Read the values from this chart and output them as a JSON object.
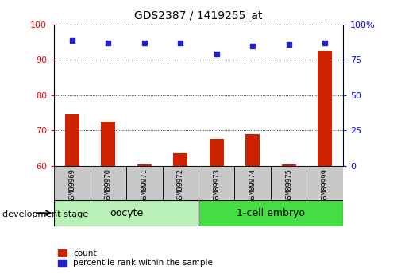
{
  "title": "GDS2387 / 1419255_at",
  "samples": [
    "GSM89969",
    "GSM89970",
    "GSM89971",
    "GSM89972",
    "GSM89973",
    "GSM89974",
    "GSM89975",
    "GSM89999"
  ],
  "count_values": [
    74.5,
    72.5,
    60.5,
    63.5,
    67.5,
    69.0,
    60.5,
    92.5
  ],
  "percentile_values": [
    89,
    87,
    87,
    87,
    79,
    85,
    86,
    87
  ],
  "ylim_left": [
    60,
    100
  ],
  "ylim_right": [
    0,
    100
  ],
  "yticks_left": [
    60,
    70,
    80,
    90,
    100
  ],
  "yticks_right": [
    0,
    25,
    50,
    75,
    100
  ],
  "yticklabels_right": [
    "0",
    "25",
    "50",
    "75",
    "100%"
  ],
  "bar_color": "#CC2200",
  "dot_color": "#2222CC",
  "background_color": "#ffffff",
  "tick_area_color": "#c8c8c8",
  "legend_count_label": "count",
  "legend_percentile_label": "percentile rank within the sample",
  "dev_stage_label": "development stage",
  "group_labels": [
    "oocyte",
    "1-cell embryo"
  ],
  "group_colors": [
    "#b8f0b8",
    "#44dd44"
  ],
  "oocyte_count": 4,
  "total_count": 8
}
